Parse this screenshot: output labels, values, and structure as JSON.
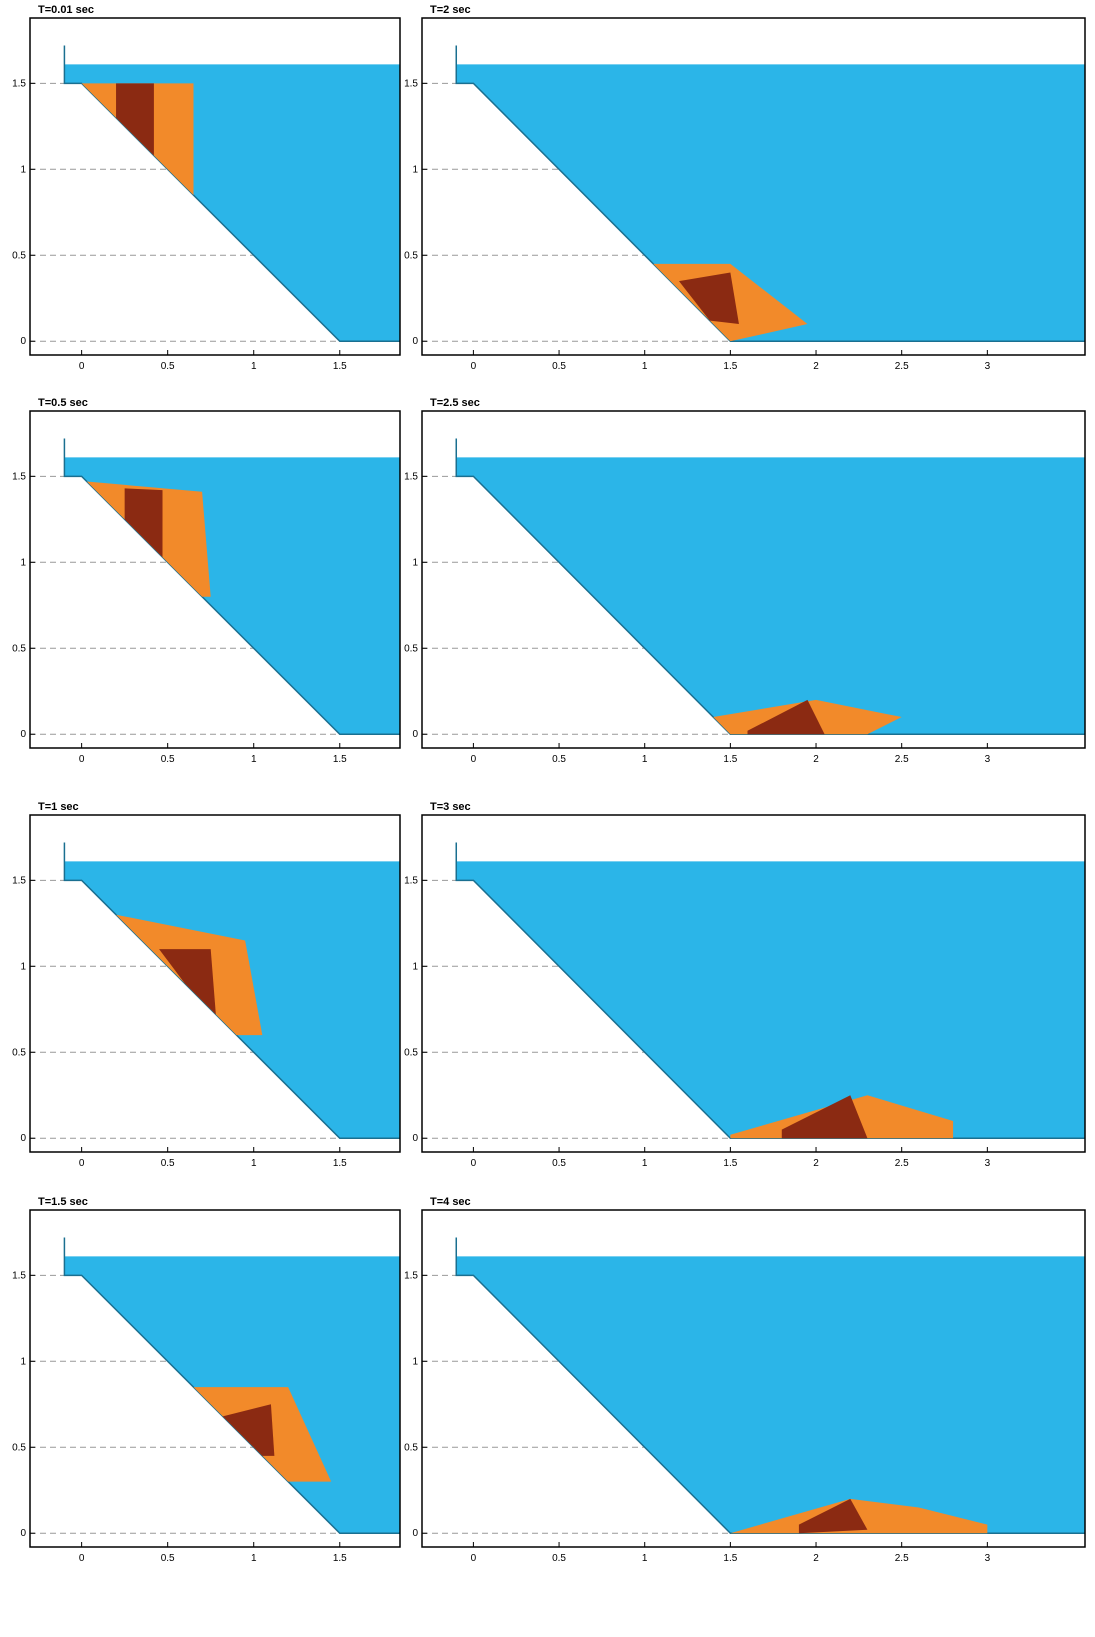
{
  "chart_data": [
    {
      "type": "area",
      "title": "T=0.01 sec",
      "xlim": [
        -0.3,
        1.85
      ],
      "ylim": [
        -0.08,
        1.88
      ],
      "xticks": [
        0,
        0.5,
        1,
        1.5
      ],
      "yticks": [
        0,
        0.5,
        1,
        1.5
      ],
      "grid": true
    },
    {
      "type": "area",
      "title": "T=0.5 sec",
      "xlim": [
        -0.3,
        1.85
      ],
      "ylim": [
        -0.08,
        1.88
      ],
      "xticks": [
        0,
        0.5,
        1,
        1.5
      ],
      "yticks": [
        0,
        0.5,
        1,
        1.5
      ],
      "grid": true
    },
    {
      "type": "area",
      "title": "T=1 sec",
      "xlim": [
        -0.3,
        1.85
      ],
      "ylim": [
        -0.08,
        1.88
      ],
      "xticks": [
        0,
        0.5,
        1,
        1.5
      ],
      "yticks": [
        0,
        0.5,
        1,
        1.5
      ],
      "grid": true
    },
    {
      "type": "area",
      "title": "T=1.5 sec",
      "xlim": [
        -0.3,
        1.85
      ],
      "ylim": [
        -0.08,
        1.88
      ],
      "xticks": [
        0,
        0.5,
        1,
        1.5
      ],
      "yticks": [
        0,
        0.5,
        1,
        1.5
      ],
      "grid": true
    },
    {
      "type": "area",
      "title": "T=2 sec",
      "xlim": [
        -0.3,
        3.57
      ],
      "ylim": [
        -0.08,
        1.88
      ],
      "xticks": [
        0,
        0.5,
        1,
        1.5,
        2,
        2.5,
        3
      ],
      "yticks": [
        0,
        0.5,
        1,
        1.5
      ],
      "grid": true
    },
    {
      "type": "area",
      "title": "T=2.5 sec",
      "xlim": [
        -0.3,
        3.57
      ],
      "ylim": [
        -0.08,
        1.88
      ],
      "xticks": [
        0,
        0.5,
        1,
        1.5,
        2,
        2.5,
        3
      ],
      "yticks": [
        0,
        0.5,
        1,
        1.5
      ],
      "grid": true
    },
    {
      "type": "area",
      "title": "T=3 sec",
      "xlim": [
        -0.3,
        3.57
      ],
      "ylim": [
        -0.08,
        1.88
      ],
      "xticks": [
        0,
        0.5,
        1,
        1.5,
        2,
        2.5,
        3
      ],
      "yticks": [
        0,
        0.5,
        1,
        1.5
      ],
      "grid": true
    },
    {
      "type": "area",
      "title": "T=4 sec",
      "xlim": [
        -0.3,
        3.57
      ],
      "ylim": [
        -0.08,
        1.88
      ],
      "xticks": [
        0,
        0.5,
        1,
        1.5,
        2,
        2.5,
        3
      ],
      "yticks": [
        0,
        0.5,
        1,
        1.5
      ],
      "grid": true
    }
  ]
}
